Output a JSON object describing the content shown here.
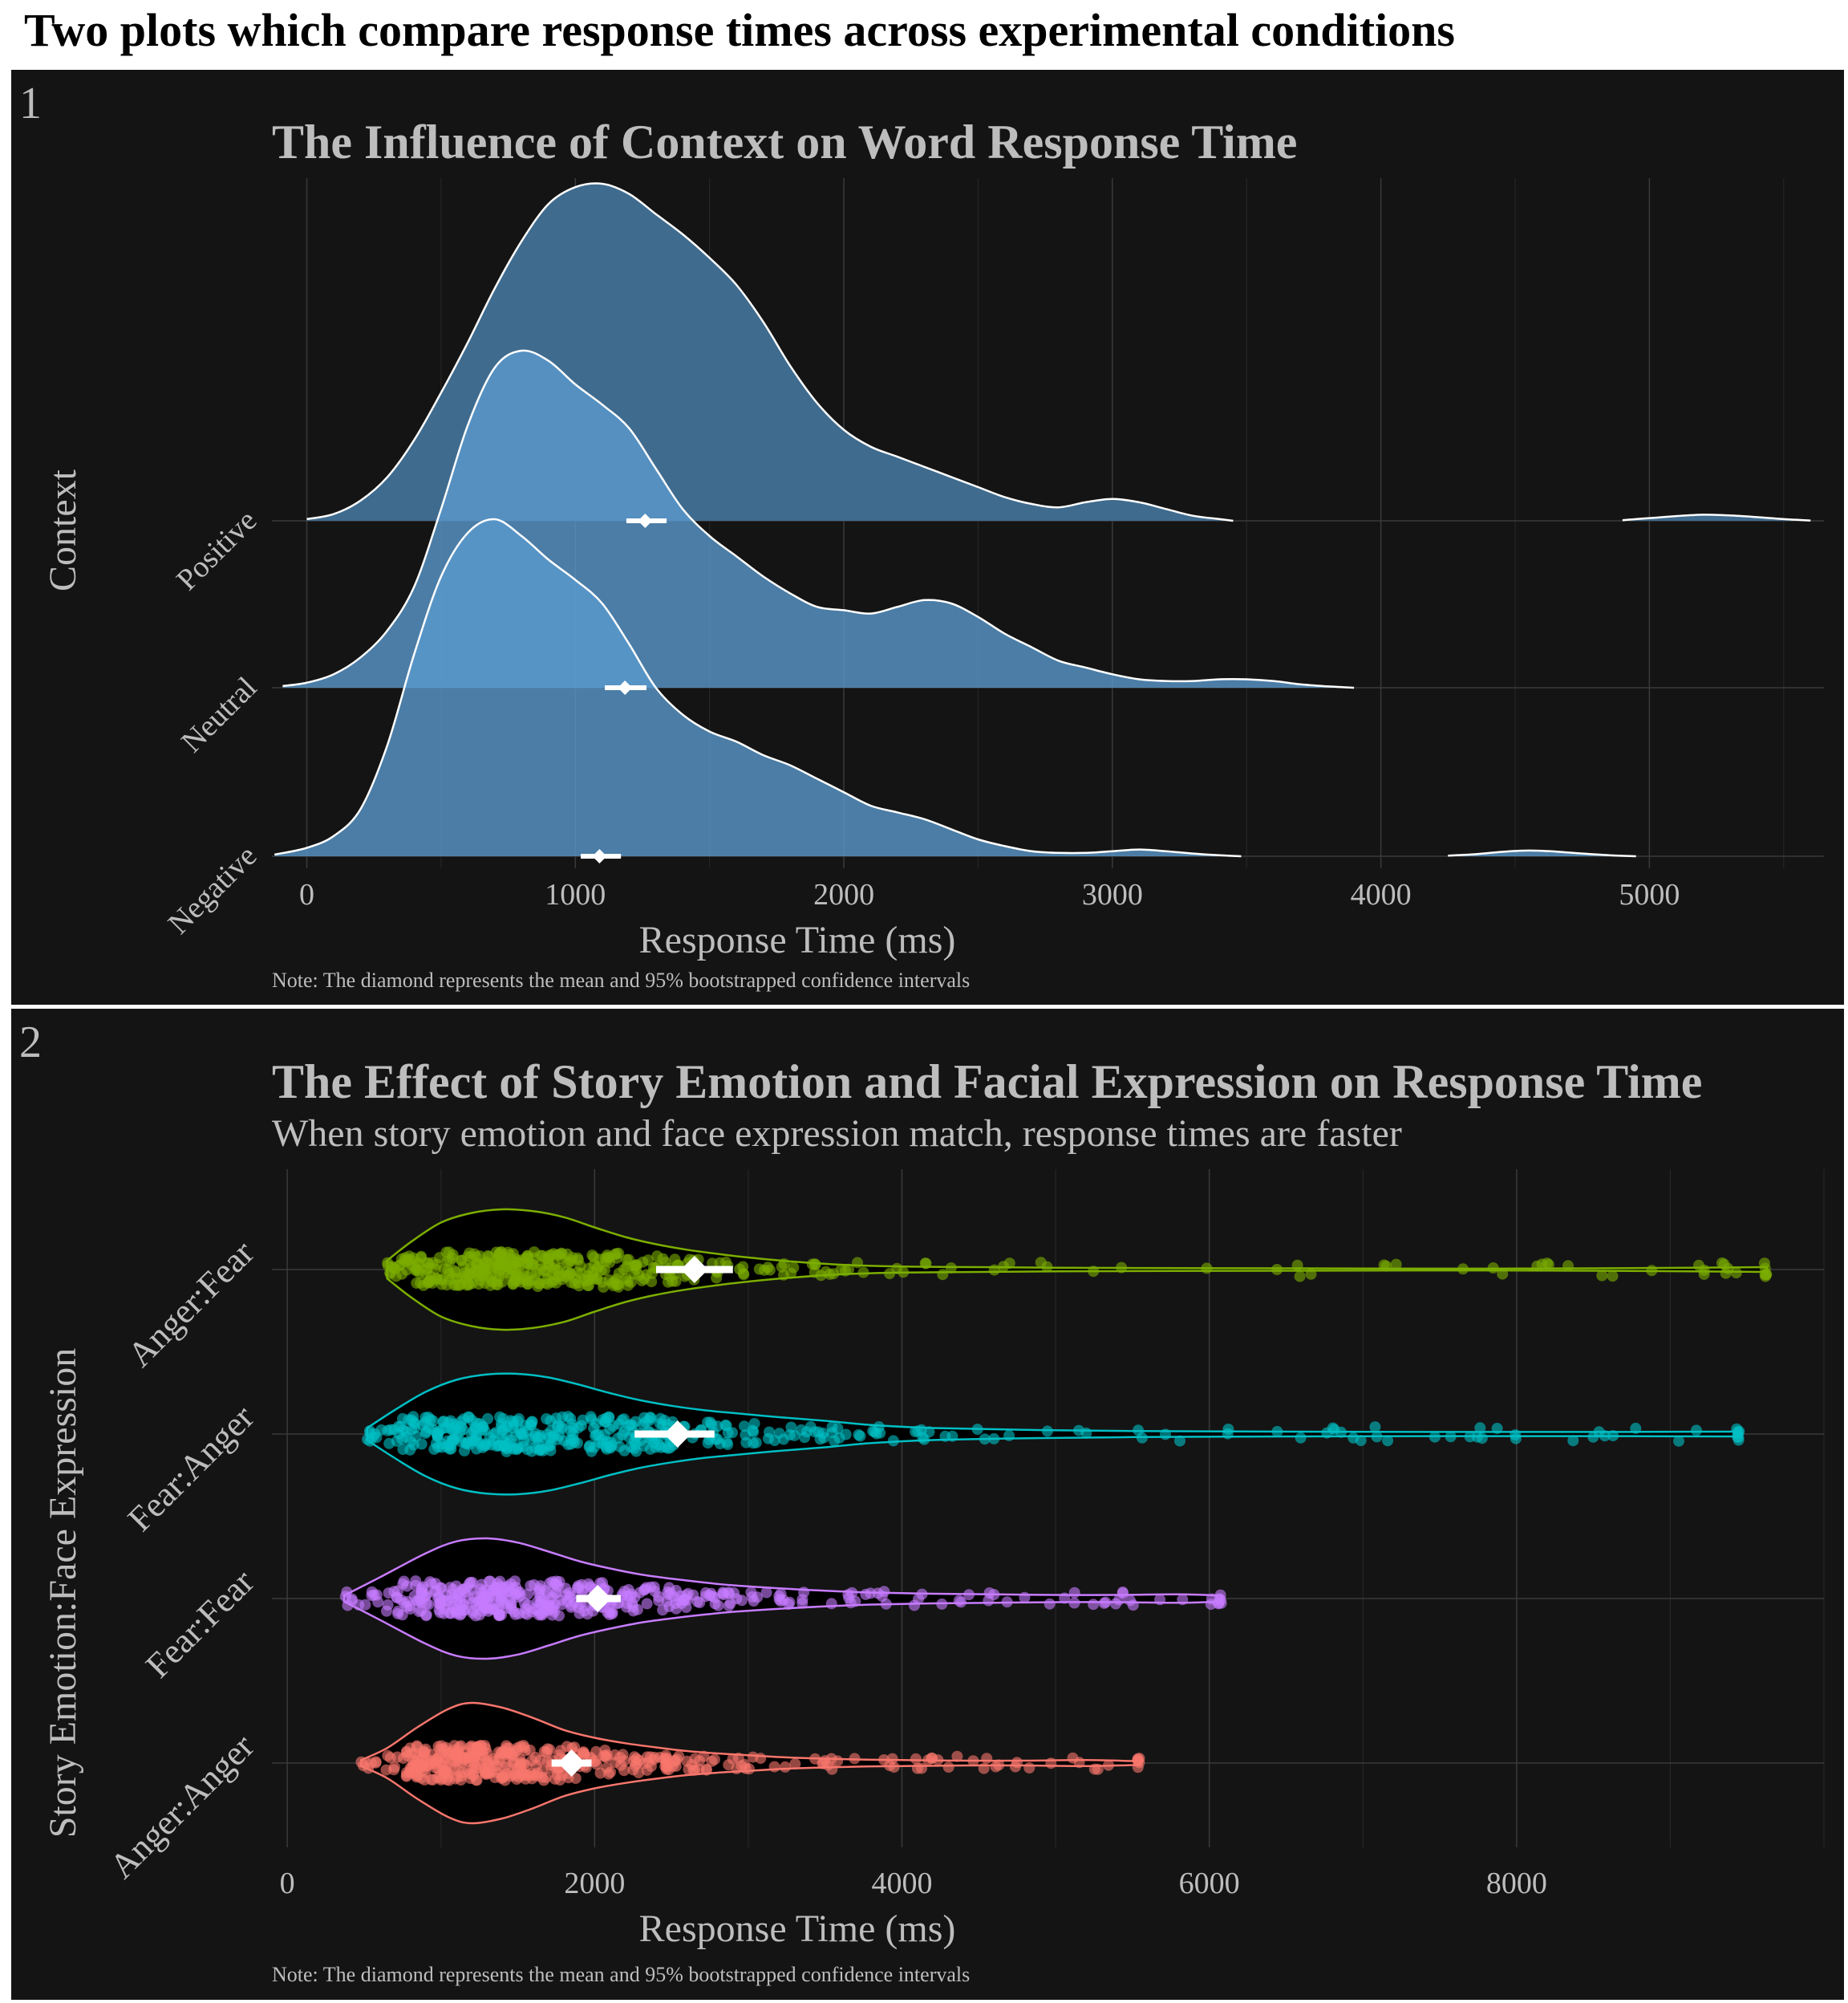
{
  "figure_title": "Two plots which compare response times across experimental conditions",
  "chart_data": [
    {
      "panel_label": "1",
      "type": "ridgeline",
      "title": "The Influence of Context on Word Response Time",
      "xlabel": "Response Time (ms)",
      "ylabel": "Context",
      "xlim": [
        -130,
        5650
      ],
      "x_ticks": [
        0,
        1000,
        2000,
        3000,
        4000,
        5000
      ],
      "grid": true,
      "note": "Note: The diamond represents the mean and 95% bootstrapped confidence intervals",
      "colors": {
        "fill": "#3f6b8e",
        "fill_overlap": "#5b9bcf",
        "outline": "#ffffff",
        "marker": "#ffffff"
      },
      "categories": [
        "Negative",
        "Neutral",
        "Positive"
      ],
      "series": [
        {
          "name": "Negative",
          "density": {
            "x": [
              -120,
              0,
              100,
              200,
              300,
              400,
              500,
              600,
              700,
              800,
              900,
              1000,
              1100,
              1200,
              1300,
              1400,
              1500,
              1600,
              1700,
              1800,
              1900,
              2000,
              2100,
              2200,
              2300,
              2400,
              2500,
              2600,
              2700,
              2800,
              2900,
              3000,
              3100,
              3200,
              3300,
              3400,
              3480
            ],
            "y": [
              0.005,
              0.025,
              0.06,
              0.14,
              0.33,
              0.6,
              0.83,
              0.96,
              1.0,
              0.95,
              0.88,
              0.82,
              0.75,
              0.63,
              0.5,
              0.42,
              0.37,
              0.34,
              0.3,
              0.27,
              0.23,
              0.19,
              0.15,
              0.13,
              0.11,
              0.08,
              0.05,
              0.03,
              0.015,
              0.01,
              0.01,
              0.015,
              0.02,
              0.015,
              0.008,
              0.003,
              0.0
            ]
          },
          "tail": {
            "x": [
              4250,
              4350,
              4450,
              4550,
              4650,
              4750,
              4850,
              4950
            ],
            "y": [
              0.002,
              0.006,
              0.013,
              0.017,
              0.014,
              0.008,
              0.003,
              0.0
            ]
          },
          "mean": 1090,
          "ci": [
            1020,
            1170
          ]
        },
        {
          "name": "Neutral",
          "density": {
            "x": [
              -90,
              0,
              100,
              200,
              300,
              400,
              500,
              600,
              700,
              800,
              900,
              1000,
              1100,
              1200,
              1300,
              1400,
              1500,
              1600,
              1700,
              1800,
              1900,
              2000,
              2100,
              2200,
              2300,
              2400,
              2500,
              2600,
              2700,
              2800,
              2900,
              3000,
              3100,
              3200,
              3300,
              3400,
              3500,
              3600,
              3700,
              3800,
              3900
            ],
            "y": [
              0.005,
              0.015,
              0.04,
              0.09,
              0.17,
              0.3,
              0.53,
              0.78,
              0.95,
              1.0,
              0.97,
              0.9,
              0.84,
              0.77,
              0.65,
              0.53,
              0.45,
              0.39,
              0.33,
              0.28,
              0.24,
              0.23,
              0.22,
              0.24,
              0.26,
              0.25,
              0.21,
              0.16,
              0.12,
              0.08,
              0.06,
              0.04,
              0.025,
              0.02,
              0.02,
              0.025,
              0.025,
              0.02,
              0.01,
              0.004,
              0.0
            ]
          },
          "mean": 1185,
          "ci": [
            1110,
            1265
          ]
        },
        {
          "name": "Positive",
          "density": {
            "x": [
              0,
              100,
              200,
              300,
              400,
              500,
              600,
              700,
              800,
              900,
              1000,
              1100,
              1200,
              1300,
              1400,
              1500,
              1600,
              1700,
              1800,
              1900,
              2000,
              2100,
              2200,
              2300,
              2400,
              2500,
              2600,
              2700,
              2800,
              2900,
              3000,
              3100,
              3200,
              3300,
              3400,
              3450
            ],
            "y": [
              0.005,
              0.02,
              0.06,
              0.13,
              0.24,
              0.38,
              0.53,
              0.69,
              0.83,
              0.94,
              0.99,
              1.0,
              0.97,
              0.91,
              0.85,
              0.78,
              0.7,
              0.59,
              0.46,
              0.35,
              0.27,
              0.22,
              0.19,
              0.16,
              0.13,
              0.1,
              0.07,
              0.05,
              0.04,
              0.055,
              0.065,
              0.055,
              0.035,
              0.015,
              0.005,
              0.0
            ]
          },
          "tail": {
            "x": [
              4900,
              5000,
              5100,
              5200,
              5300,
              5400,
              5500,
              5600
            ],
            "y": [
              0.002,
              0.008,
              0.014,
              0.018,
              0.016,
              0.011,
              0.005,
              0.001
            ]
          },
          "mean": 1260,
          "ci": [
            1190,
            1340
          ]
        }
      ]
    },
    {
      "panel_label": "2",
      "type": "violin-jitter",
      "title": "The Effect of Story Emotion and Facial Expression on Response Time",
      "subtitle": "When story emotion and face expression match, response times are faster",
      "xlabel": "Response Time (ms)",
      "ylabel": "Story Emotion:Face Expression",
      "xlim": [
        -100,
        10000
      ],
      "x_ticks": [
        0,
        2000,
        4000,
        6000,
        8000
      ],
      "grid": true,
      "note": "Note: The diamond represents the mean and 95% bootstrapped confidence intervals",
      "categories": [
        "Anger:Anger",
        "Fear:Fear",
        "Fear:Anger",
        "Anger:Fear"
      ],
      "series": [
        {
          "name": "Anger:Anger",
          "color": "#f8766d",
          "mean": 1850,
          "ci": [
            1720,
            1980
          ],
          "min": 480,
          "max": 5550,
          "violin": {
            "x": [
              480,
              650,
              850,
              1050,
              1200,
              1400,
              1600,
              1800,
              2000,
              2200,
              2400,
              2600,
              2800,
              3000,
              3200,
              3400,
              3700,
              4000,
              4400,
              4800,
              5200,
              5550
            ],
            "w": [
              0.05,
              0.25,
              0.6,
              0.9,
              1.0,
              0.92,
              0.75,
              0.55,
              0.42,
              0.33,
              0.26,
              0.2,
              0.16,
              0.13,
              0.1,
              0.08,
              0.06,
              0.05,
              0.04,
              0.04,
              0.05,
              0.03
            ]
          }
        },
        {
          "name": "Fear:Fear",
          "color": "#c77cff",
          "mean": 2020,
          "ci": [
            1880,
            2170
          ],
          "min": 370,
          "max": 6080,
          "violin": {
            "x": [
              370,
              600,
              900,
              1100,
              1300,
              1500,
              1700,
              1900,
              2100,
              2300,
              2500,
              2700,
              2900,
              3200,
              3500,
              3800,
              4200,
              4600,
              5000,
              5400,
              5800,
              6080
            ],
            "w": [
              0.05,
              0.35,
              0.75,
              0.95,
              1.0,
              0.93,
              0.78,
              0.62,
              0.5,
              0.4,
              0.33,
              0.27,
              0.22,
              0.17,
              0.13,
              0.1,
              0.08,
              0.07,
              0.06,
              0.06,
              0.07,
              0.05
            ]
          }
        },
        {
          "name": "Fear:Anger",
          "color": "#00bfc4",
          "mean": 2540,
          "ci": [
            2260,
            2780
          ],
          "min": 520,
          "max": 9450,
          "violin": {
            "x": [
              520,
              700,
              900,
              1100,
              1300,
              1500,
              1700,
              1900,
              2100,
              2300,
              2500,
              2700,
              2900,
              3200,
              3500,
              3800,
              4200,
              4800,
              5500,
              6500,
              7500,
              8500,
              9450
            ],
            "w": [
              0.1,
              0.4,
              0.7,
              0.9,
              0.99,
              1.0,
              0.94,
              0.82,
              0.68,
              0.56,
              0.47,
              0.4,
              0.35,
              0.28,
              0.22,
              0.15,
              0.1,
              0.07,
              0.05,
              0.04,
              0.035,
              0.035,
              0.04
            ]
          }
        },
        {
          "name": "Anger:Fear",
          "color": "#7cae00",
          "mean": 2650,
          "ci": [
            2400,
            2900
          ],
          "min": 650,
          "max": 9630,
          "violin": {
            "x": [
              650,
              800,
              1000,
              1200,
              1400,
              1600,
              1800,
              2000,
              2200,
              2400,
              2600,
              2800,
              3000,
              3300,
              3600,
              4000,
              4500,
              5000,
              5500,
              6500,
              7500,
              8500,
              9630
            ],
            "w": [
              0.15,
              0.45,
              0.78,
              0.94,
              1.0,
              0.97,
              0.87,
              0.7,
              0.54,
              0.42,
              0.33,
              0.26,
              0.2,
              0.13,
              0.08,
              0.05,
              0.04,
              0.03,
              0.025,
              0.02,
              0.015,
              0.02,
              0.04
            ]
          }
        }
      ]
    }
  ]
}
